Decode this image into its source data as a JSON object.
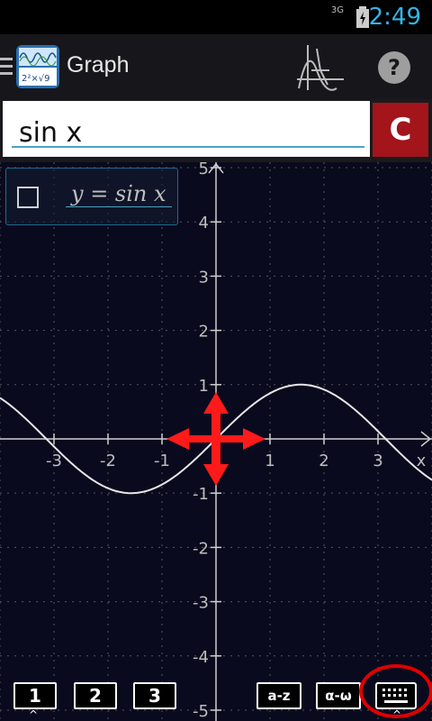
{
  "status_bar": {
    "network": "3G",
    "time": "2:49"
  },
  "app": {
    "title": "Graph"
  },
  "input": {
    "value": "sin x"
  },
  "clear_button": {
    "label": "C"
  },
  "legend": {
    "equation": "y = sin x",
    "checked": false
  },
  "bottom_bar": {
    "buttons": [
      "1",
      "2",
      "3",
      "a-z",
      "α-ω"
    ],
    "keyboard_icon": "keyboard-icon"
  },
  "colors": {
    "accent": "#33b5e5",
    "clear_button": "#a3141b",
    "pan_arrows": "#ff1a1a",
    "keyboard_highlight": "#e00000"
  },
  "chart_data": {
    "type": "line",
    "series": [
      {
        "name": "y = sin x",
        "function": "sin(x)"
      }
    ],
    "xlabel": "x",
    "ylabel": "",
    "x_ticks": [
      -3,
      -2,
      -1,
      1,
      2,
      3
    ],
    "y_ticks": [
      5,
      4,
      3,
      2,
      1,
      -1,
      -2,
      -3,
      -4,
      -5
    ],
    "xlim": [
      -4,
      4
    ],
    "ylim": [
      -5.2,
      5.1
    ],
    "grid": true
  }
}
